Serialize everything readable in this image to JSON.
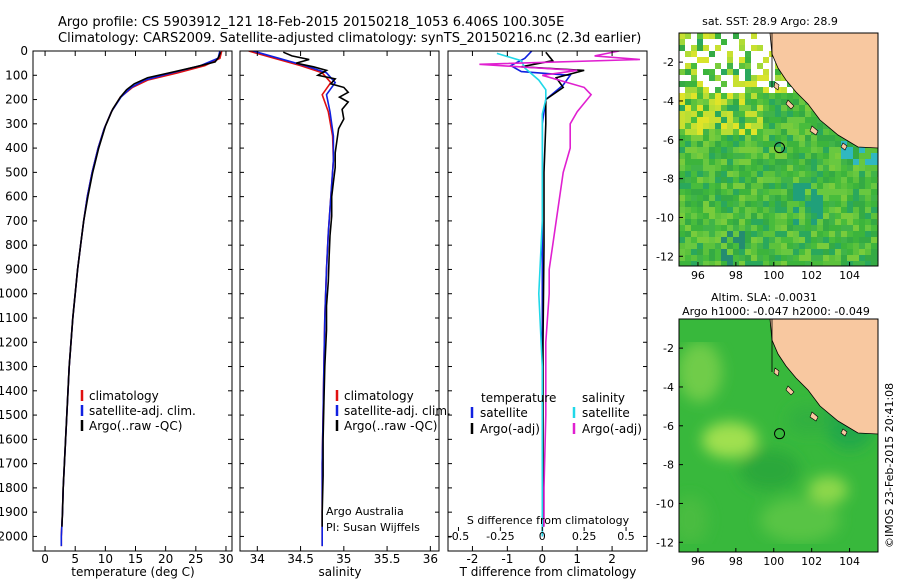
{
  "header": {
    "line1": "Argo profile: CS 5903912_121 18-Feb-2015 20150218_1053 6.406S 100.305E",
    "line2": "Climatology: CARS2009. Satellite-adjusted climatology: synTS_20150216.nc (2.3d earlier)"
  },
  "colors": {
    "climatology": "#e01010",
    "satellite": "#1020e0",
    "argo": "#000000",
    "satellite_s": "#20d8e8",
    "argo_s": "#e020d0",
    "land": "#f8c8a0"
  },
  "chart_data": [
    {
      "type": "line",
      "panel": "temperature",
      "xlabel": "temperature (deg C)",
      "xlim": [
        -2,
        31
      ],
      "xticks": [
        0,
        5,
        10,
        15,
        20,
        25,
        30
      ],
      "ylim": [
        2060,
        0
      ],
      "yticks": [
        0,
        100,
        200,
        300,
        400,
        500,
        600,
        700,
        800,
        900,
        1000,
        1100,
        1200,
        1300,
        1400,
        1500,
        1600,
        1700,
        1800,
        1900,
        2000
      ],
      "legend": [
        "climatology",
        "satellite-adj. clim.",
        "Argo(..raw -QC)"
      ],
      "series": [
        {
          "name": "climatology",
          "color": "climatology",
          "points": [
            [
              29.3,
              0
            ],
            [
              29.0,
              30
            ],
            [
              26.5,
              60
            ],
            [
              22,
              90
            ],
            [
              17,
              120
            ],
            [
              14.5,
              150
            ],
            [
              12.5,
              190
            ],
            [
              11,
              250
            ],
            [
              9.8,
              320
            ],
            [
              8.8,
              400
            ],
            [
              7.8,
              500
            ],
            [
              7.0,
              600
            ],
            [
              6.4,
              700
            ],
            [
              5.9,
              800
            ],
            [
              5.4,
              900
            ],
            [
              5.0,
              1000
            ],
            [
              4.6,
              1100
            ],
            [
              4.3,
              1200
            ],
            [
              4.0,
              1300
            ],
            [
              3.8,
              1400
            ],
            [
              3.6,
              1500
            ],
            [
              3.4,
              1600
            ],
            [
              3.2,
              1700
            ],
            [
              3.0,
              1800
            ],
            [
              2.9,
              1900
            ],
            [
              2.7,
              2000
            ],
            [
              2.7,
              2040
            ]
          ]
        },
        {
          "name": "satellite-adj. clim.",
          "color": "satellite",
          "points": [
            [
              29.0,
              0
            ],
            [
              28.7,
              30
            ],
            [
              25.8,
              60
            ],
            [
              21,
              90
            ],
            [
              16.5,
              120
            ],
            [
              14.3,
              150
            ],
            [
              12.6,
              190
            ],
            [
              11,
              250
            ],
            [
              9.8,
              320
            ],
            [
              8.8,
              400
            ],
            [
              7.8,
              500
            ],
            [
              7.0,
              600
            ],
            [
              6.4,
              700
            ],
            [
              5.9,
              800
            ],
            [
              5.4,
              900
            ],
            [
              5.0,
              1000
            ],
            [
              4.6,
              1100
            ],
            [
              4.3,
              1200
            ],
            [
              4.0,
              1300
            ],
            [
              3.8,
              1400
            ],
            [
              3.6,
              1500
            ],
            [
              3.4,
              1600
            ],
            [
              3.2,
              1700
            ],
            [
              3.0,
              1800
            ],
            [
              2.9,
              1900
            ],
            [
              2.7,
              2000
            ],
            [
              2.7,
              2040
            ]
          ]
        },
        {
          "name": "Argo(..raw -QC)",
          "color": "argo",
          "points": [
            [
              29.1,
              5
            ],
            [
              28.8,
              25
            ],
            [
              28.2,
              45
            ],
            [
              25,
              65
            ],
            [
              21.5,
              85
            ],
            [
              17,
              110
            ],
            [
              14.8,
              135
            ],
            [
              13.5,
              160
            ],
            [
              12.5,
              190
            ],
            [
              11.2,
              240
            ],
            [
              10,
              310
            ],
            [
              8.9,
              400
            ],
            [
              7.9,
              500
            ],
            [
              7.1,
              600
            ],
            [
              6.4,
              700
            ],
            [
              5.9,
              800
            ],
            [
              5.4,
              900
            ],
            [
              5.0,
              1000
            ],
            [
              4.6,
              1100
            ],
            [
              4.3,
              1200
            ],
            [
              4.0,
              1300
            ],
            [
              3.8,
              1400
            ],
            [
              3.6,
              1500
            ],
            [
              3.4,
              1600
            ],
            [
              3.2,
              1700
            ],
            [
              3.0,
              1800
            ],
            [
              2.9,
              1900
            ],
            [
              2.8,
              1960
            ]
          ]
        }
      ]
    },
    {
      "type": "line",
      "panel": "salinity",
      "xlabel": "salinity",
      "xlim": [
        33.8,
        36.1
      ],
      "xticks": [
        34,
        34.5,
        35,
        35.5,
        36
      ],
      "ylim": [
        2060,
        0
      ],
      "legend": [
        "climatology",
        "satellite-adj. clim.",
        "Argo(..raw -QC)"
      ],
      "annotation": [
        "Argo Australia",
        "PI: Susan Wijffels"
      ],
      "series": [
        {
          "name": "climatology",
          "color": "climatology",
          "points": [
            [
              33.9,
              0
            ],
            [
              34.2,
              30
            ],
            [
              34.5,
              60
            ],
            [
              34.75,
              90
            ],
            [
              34.85,
              130
            ],
            [
              34.75,
              180
            ],
            [
              34.82,
              250
            ],
            [
              34.87,
              350
            ],
            [
              34.88,
              450
            ],
            [
              34.86,
              550
            ],
            [
              34.84,
              650
            ],
            [
              34.82,
              750
            ],
            [
              34.8,
              900
            ],
            [
              34.78,
              1100
            ],
            [
              34.77,
              1300
            ],
            [
              34.76,
              1500
            ],
            [
              34.75,
              1700
            ],
            [
              34.75,
              1900
            ],
            [
              34.75,
              2040
            ]
          ]
        },
        {
          "name": "satellite-adj. clim.",
          "color": "satellite",
          "points": [
            [
              33.95,
              0
            ],
            [
              34.25,
              30
            ],
            [
              34.55,
              60
            ],
            [
              34.8,
              90
            ],
            [
              34.9,
              130
            ],
            [
              34.8,
              180
            ],
            [
              34.84,
              250
            ],
            [
              34.88,
              350
            ],
            [
              34.88,
              450
            ],
            [
              34.86,
              550
            ],
            [
              34.84,
              650
            ],
            [
              34.82,
              750
            ],
            [
              34.8,
              900
            ],
            [
              34.78,
              1100
            ],
            [
              34.77,
              1300
            ],
            [
              34.76,
              1500
            ],
            [
              34.75,
              1700
            ],
            [
              34.75,
              1900
            ],
            [
              34.75,
              2040
            ]
          ]
        },
        {
          "name": "Argo(..raw -QC)",
          "color": "argo",
          "points": [
            [
              34.3,
              5
            ],
            [
              34.4,
              20
            ],
            [
              34.6,
              35
            ],
            [
              34.45,
              50
            ],
            [
              34.65,
              65
            ],
            [
              34.8,
              80
            ],
            [
              34.7,
              100
            ],
            [
              34.9,
              115
            ],
            [
              34.85,
              135
            ],
            [
              35.0,
              150
            ],
            [
              35.05,
              170
            ],
            [
              34.95,
              190
            ],
            [
              35.05,
              210
            ],
            [
              34.98,
              240
            ],
            [
              35.0,
              280
            ],
            [
              34.94,
              320
            ],
            [
              34.92,
              370
            ],
            [
              34.9,
              420
            ],
            [
              34.9,
              480
            ],
            [
              34.88,
              540
            ],
            [
              34.86,
              600
            ],
            [
              34.86,
              680
            ],
            [
              34.84,
              760
            ],
            [
              34.83,
              850
            ],
            [
              34.82,
              950
            ],
            [
              34.8,
              1050
            ],
            [
              34.8,
              1150
            ],
            [
              34.78,
              1300
            ],
            [
              34.77,
              1450
            ],
            [
              34.76,
              1600
            ],
            [
              34.76,
              1750
            ],
            [
              34.75,
              1900
            ],
            [
              34.75,
              1960
            ]
          ]
        }
      ]
    },
    {
      "type": "line",
      "panel": "difference",
      "xlabel": "T difference from climatology",
      "xlim": [
        -2.7,
        3.0
      ],
      "xticks": [
        -2,
        -1,
        0,
        1,
        2
      ],
      "top_label": "S difference from climatology",
      "top_ticks": [
        [
          -0.5,
          "-0.5"
        ],
        [
          -0.25,
          "-0.25"
        ],
        [
          0,
          "0"
        ],
        [
          0.25,
          "0.25"
        ],
        [
          0.5,
          "0.5"
        ]
      ],
      "ylim": [
        2060,
        0
      ],
      "legend_headers": [
        "temperature",
        "salinity"
      ],
      "legend": [
        "satellite",
        "Argo(-adj)",
        "satellite",
        "Argo(-adj)"
      ],
      "series": [
        {
          "name": "temperature satellite",
          "color": "satellite",
          "points": [
            [
              -0.3,
              0
            ],
            [
              -0.5,
              30
            ],
            [
              -0.9,
              60
            ],
            [
              -0.6,
              85
            ],
            [
              0.8,
              100
            ],
            [
              0.6,
              140
            ],
            [
              0.1,
              200
            ],
            [
              0,
              300
            ],
            [
              0,
              600
            ],
            [
              0,
              1000
            ],
            [
              0,
              1500
            ],
            [
              0,
              2000
            ]
          ]
        },
        {
          "name": "temperature Argo(-adj)",
          "color": "argo",
          "points": [
            [
              0.1,
              5
            ],
            [
              0.3,
              40
            ],
            [
              -0.6,
              65
            ],
            [
              1.2,
              80
            ],
            [
              0.4,
              110
            ],
            [
              0.6,
              150
            ],
            [
              0.1,
              200
            ],
            [
              0.1,
              300
            ],
            [
              0.05,
              500
            ],
            [
              0.05,
              800
            ],
            [
              0.02,
              1200
            ],
            [
              0.02,
              1600
            ],
            [
              0.02,
              1960
            ]
          ]
        },
        {
          "name": "salinity satellite",
          "color": "satellite_s",
          "points": [
            [
              -1.3,
              10
            ],
            [
              -0.6,
              40
            ],
            [
              -0.5,
              70
            ],
            [
              -0.1,
              120
            ],
            [
              0.1,
              160
            ],
            [
              0.1,
              200
            ],
            [
              0.0,
              260
            ],
            [
              0.0,
              400
            ],
            [
              0.0,
              700
            ],
            [
              -0.1,
              1000
            ],
            [
              0.0,
              1300
            ],
            [
              0.0,
              1600
            ],
            [
              0.0,
              2000
            ]
          ]
        },
        {
          "name": "salinity Argo(-adj)",
          "color": "argo_s",
          "points": [
            [
              2.2,
              0
            ],
            [
              1.5,
              20
            ],
            [
              2.8,
              35
            ],
            [
              -1.8,
              55
            ],
            [
              1.0,
              80
            ],
            [
              0.0,
              100
            ],
            [
              1.2,
              150
            ],
            [
              1.4,
              180
            ],
            [
              1.0,
              250
            ],
            [
              0.8,
              300
            ],
            [
              0.8,
              400
            ],
            [
              0.6,
              500
            ],
            [
              0.5,
              600
            ],
            [
              0.4,
              700
            ],
            [
              0.3,
              800
            ],
            [
              0.2,
              900
            ],
            [
              0.2,
              1000
            ],
            [
              0.1,
              1200
            ],
            [
              0.1,
              1500
            ],
            [
              0.05,
              1800
            ],
            [
              0.05,
              1960
            ]
          ]
        }
      ]
    },
    {
      "type": "heatmap",
      "panel": "sst_map",
      "title": "sat. SST: 28.9 Argo: 28.9",
      "xlim": [
        95,
        105.5
      ],
      "ylim": [
        -12.5,
        -0.5
      ],
      "xticks": [
        [
          96,
          "96"
        ],
        [
          98,
          "98"
        ],
        [
          100,
          "100"
        ],
        [
          102,
          "102"
        ],
        [
          104,
          "104"
        ]
      ],
      "yticks": [
        -2,
        -4,
        -6,
        -8,
        -10,
        -12
      ],
      "argo_position": [
        100.305,
        -6.406
      ]
    },
    {
      "type": "heatmap",
      "panel": "sla_map",
      "title": "Altim. SLA: -0.0031",
      "subtitle": "Argo h1000: -0.047 h2000: -0.049",
      "xlim": [
        95,
        105.5
      ],
      "ylim": [
        -12.5,
        -0.5
      ],
      "xticks": [
        [
          96,
          "96"
        ],
        [
          98,
          "98"
        ],
        [
          100,
          "100"
        ],
        [
          102,
          "102"
        ],
        [
          104,
          "104"
        ]
      ],
      "yticks": [
        -2,
        -4,
        -6,
        -8,
        -10,
        -12
      ],
      "argo_position": [
        100.305,
        -6.406
      ]
    }
  ],
  "side_credit": "©IMOS 23-Feb-2015 20:41:08"
}
